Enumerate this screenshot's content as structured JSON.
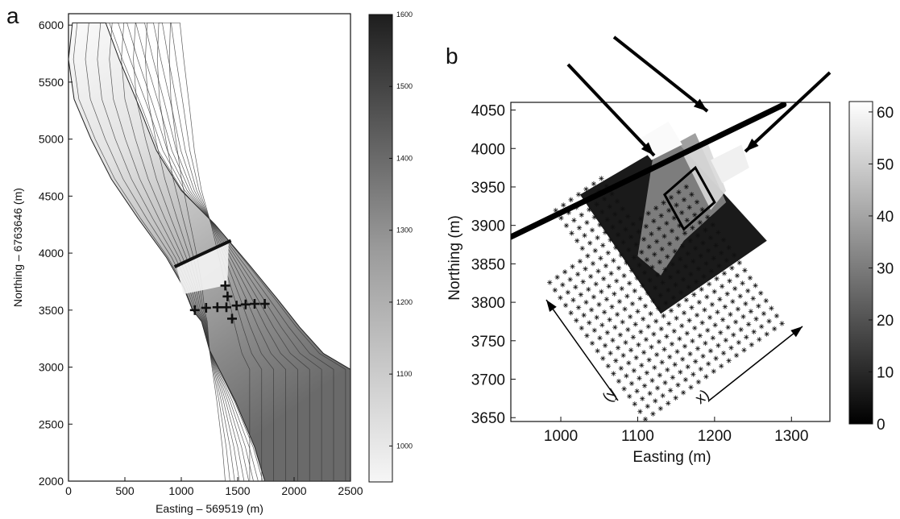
{
  "chart_data": [
    {
      "panel": "a",
      "type": "contour map",
      "xlabel": "Easting  – 569519 (m)",
      "ylabel": "Northing – 6763646 (m)",
      "xlim": [
        0,
        2500
      ],
      "ylim": [
        2000,
        6100
      ],
      "xticks": [
        "0",
        "500",
        "1000",
        "1500",
        "2000",
        "2500"
      ],
      "yticks": [
        "2000",
        "2500",
        "3000",
        "3500",
        "4000",
        "4500",
        "5000",
        "5500",
        "6000"
      ],
      "colorbar": {
        "range": [
          950,
          1600
        ],
        "ticks": [
          "1000",
          "1100",
          "1200",
          "1300",
          "1400",
          "1500",
          "1600"
        ],
        "colormap": "grayscale, light = low, dark = high"
      },
      "line": {
        "from": [
          940,
          3880
        ],
        "to": [
          1440,
          4110
        ]
      },
      "crosses": [
        [
          1120,
          3500
        ],
        [
          1220,
          3520
        ],
        [
          1320,
          3525
        ],
        [
          1400,
          3525
        ],
        [
          1490,
          3540
        ],
        [
          1570,
          3550
        ],
        [
          1650,
          3555
        ],
        [
          1740,
          3555
        ],
        [
          1390,
          3715
        ],
        [
          1410,
          3620
        ],
        [
          1450,
          3425
        ]
      ]
    },
    {
      "panel": "b",
      "type": "heatmap with grid points",
      "xlabel": "Easting (m)",
      "ylabel": "Northing (m)",
      "xlim": [
        935,
        1350
      ],
      "ylim": [
        3645,
        4060
      ],
      "xticks": [
        "1000",
        "1100",
        "1200",
        "1300"
      ],
      "yticks": [
        "3650",
        "3700",
        "3750",
        "3800",
        "3850",
        "3900",
        "3950",
        "4000",
        "4050"
      ],
      "colorbar": {
        "range": [
          0,
          62
        ],
        "ticks": [
          "0",
          "10",
          "20",
          "30",
          "40",
          "50",
          "60"
        ],
        "colormap": "grayscale, dark = low, light = high"
      },
      "axis_labels_rotated": {
        "y_axis": "y",
        "x_axis": "x"
      },
      "thick_line": {
        "from": [
          935,
          3885
        ],
        "to": [
          1290,
          4057
        ]
      },
      "box": [
        [
          1135,
          3940
        ],
        [
          1175,
          3975
        ],
        [
          1200,
          3930
        ],
        [
          1160,
          3895
        ]
      ]
    }
  ]
}
